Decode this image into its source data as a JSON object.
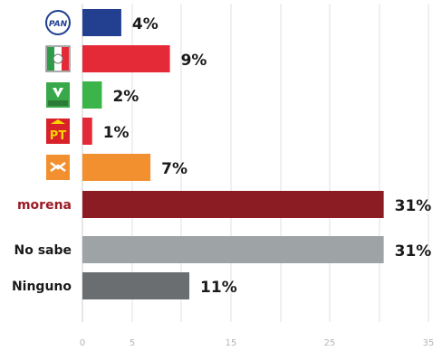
{
  "chart_data": {
    "type": "bar",
    "orientation": "horizontal",
    "categories": [
      "PAN",
      "PRI",
      "VERDE",
      "PT",
      "MC",
      "morena",
      "No sabe",
      "Ninguno"
    ],
    "category_display": [
      "logo",
      "logo",
      "logo",
      "logo",
      "logo",
      "text",
      "text",
      "text"
    ],
    "values": [
      4,
      9,
      2,
      1,
      7,
      31,
      31,
      11
    ],
    "value_labels": [
      "4%",
      "9%",
      "2%",
      "1%",
      "7%",
      "31%",
      "31%",
      "11%"
    ],
    "colors": [
      "#22408f",
      "#e42a36",
      "#3bb54a",
      "#e42a36",
      "#f2902f",
      "#8b1c24",
      "#9ea3a6",
      "#6b6e70"
    ],
    "label_colors": [
      "#1a1a1a",
      "#1a1a1a",
      "#1a1a1a",
      "#1a1a1a",
      "#1a1a1a",
      "#9b1b25",
      "#1a1a1a",
      "#1a1a1a"
    ],
    "logo_text": [
      "PAN",
      "",
      "",
      "PT",
      "",
      "",
      "",
      ""
    ],
    "x_ticks": [
      "0",
      "5",
      "15",
      "25",
      "35"
    ],
    "xlim": [
      0,
      31.5
    ],
    "grid": true,
    "title": "",
    "xlabel": "",
    "ylabel": ""
  }
}
